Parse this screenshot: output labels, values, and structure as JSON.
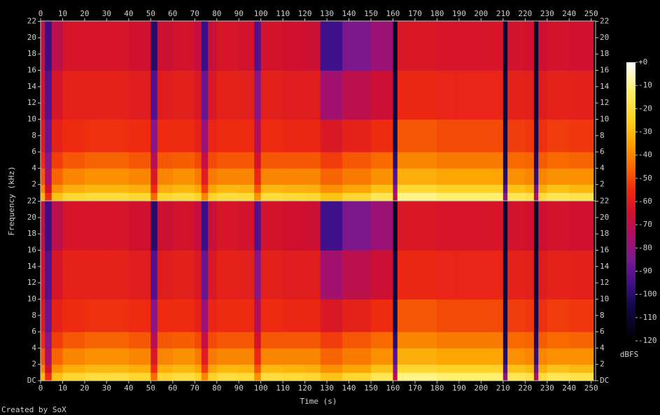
{
  "chart_data": {
    "type": "spectrogram",
    "xlabel": "Time (s)",
    "ylabel": "Frequency (kHz)",
    "footer": "Created by SoX",
    "xlim": [
      0,
      252
    ],
    "xticks": [
      0,
      10,
      20,
      30,
      40,
      50,
      60,
      70,
      80,
      90,
      100,
      110,
      120,
      130,
      140,
      150,
      160,
      170,
      180,
      190,
      200,
      210,
      220,
      230,
      240,
      250
    ],
    "ylim": [
      0,
      22.05
    ],
    "panels": [
      {
        "yticks": [
          2,
          4,
          6,
          8,
          10,
          12,
          14,
          16,
          18,
          20,
          22
        ]
      },
      {
        "yticks": [
          {
            "value": 0,
            "label": "DC"
          },
          2,
          4,
          6,
          8,
          10,
          12,
          14,
          16,
          18,
          20,
          22
        ]
      }
    ],
    "time_edges": [
      0,
      2,
      5,
      10,
      20,
      30,
      40,
      50,
      53,
      60,
      70,
      73,
      76,
      80,
      90,
      97,
      100,
      110,
      120,
      127,
      137,
      150,
      160,
      162,
      170,
      180,
      190,
      200,
      210,
      212,
      220,
      224,
      226,
      230,
      240,
      251
    ],
    "freq_edges": [
      0,
      1,
      2,
      4,
      6,
      10,
      16,
      22.05
    ],
    "z": [
      [
        -30,
        -40,
        -48,
        -55,
        -60,
        -64,
        -68
      ],
      [
        -55,
        -65,
        -75,
        -82,
        -88,
        -92,
        -96
      ],
      [
        -28,
        -38,
        -46,
        -52,
        -58,
        -63,
        -70
      ],
      [
        -22,
        -32,
        -40,
        -48,
        -55,
        -58,
        -63
      ],
      [
        -20,
        -30,
        -38,
        -46,
        -54,
        -58,
        -63
      ],
      [
        -20,
        -30,
        -38,
        -46,
        -54,
        -58,
        -63
      ],
      [
        -22,
        -32,
        -40,
        -48,
        -55,
        -60,
        -65
      ],
      [
        -45,
        -55,
        -62,
        -72,
        -82,
        -92,
        -100
      ],
      [
        -22,
        -32,
        -40,
        -48,
        -55,
        -60,
        -66
      ],
      [
        -20,
        -30,
        -38,
        -47,
        -55,
        -59,
        -64
      ],
      [
        -24,
        -34,
        -42,
        -50,
        -58,
        -62,
        -68
      ],
      [
        -40,
        -52,
        -60,
        -68,
        -78,
        -88,
        -96
      ],
      [
        -24,
        -34,
        -42,
        -50,
        -57,
        -62,
        -67
      ],
      [
        -20,
        -30,
        -40,
        -48,
        -55,
        -58,
        -63
      ],
      [
        -21,
        -31,
        -40,
        -48,
        -55,
        -59,
        -64
      ],
      [
        -38,
        -48,
        -56,
        -64,
        -72,
        -82,
        -92
      ],
      [
        -20,
        -30,
        -40,
        -48,
        -55,
        -59,
        -64
      ],
      [
        -21,
        -31,
        -40,
        -48,
        -56,
        -60,
        -65
      ],
      [
        -22,
        -32,
        -40,
        -48,
        -56,
        -60,
        -66
      ],
      [
        -28,
        -38,
        -46,
        -52,
        -62,
        -76,
        -95
      ],
      [
        -22,
        -34,
        -42,
        -48,
        -58,
        -70,
        -84
      ],
      [
        -16,
        -28,
        -38,
        -45,
        -55,
        -66,
        -78
      ],
      [
        -70,
        -82,
        -92,
        -100,
        -105,
        -108,
        -112
      ],
      [
        -10,
        -22,
        -32,
        -40,
        -48,
        -56,
        -62
      ],
      [
        -10,
        -22,
        -32,
        -40,
        -48,
        -56,
        -62
      ],
      [
        -12,
        -24,
        -34,
        -42,
        -50,
        -57,
        -63
      ],
      [
        -12,
        -24,
        -34,
        -42,
        -50,
        -57,
        -63
      ],
      [
        -12,
        -24,
        -34,
        -42,
        -50,
        -57,
        -63
      ],
      [
        -80,
        -92,
        -100,
        -104,
        -106,
        -108,
        -110
      ],
      [
        -16,
        -28,
        -38,
        -45,
        -52,
        -58,
        -64
      ],
      [
        -18,
        -30,
        -40,
        -46,
        -53,
        -59,
        -65
      ],
      [
        -75,
        -88,
        -98,
        -102,
        -105,
        -108,
        -110
      ],
      [
        -20,
        -32,
        -40,
        -47,
        -54,
        -60,
        -66
      ],
      [
        -16,
        -28,
        -38,
        -45,
        -52,
        -58,
        -64
      ],
      [
        -18,
        -30,
        -38,
        -46,
        -53,
        -59,
        -65
      ]
    ],
    "colorbar": {
      "label": "dBFS",
      "zlim": [
        -120,
        0
      ],
      "ticks": [
        {
          "value": 0,
          "label": "+0"
        },
        -10,
        -20,
        -30,
        -40,
        -50,
        -60,
        -70,
        -80,
        -90,
        -100,
        -110,
        -120
      ]
    },
    "colormap": [
      [
        -120,
        "#000000"
      ],
      [
        -105,
        "#10084a"
      ],
      [
        -95,
        "#40108a"
      ],
      [
        -85,
        "#7a1890"
      ],
      [
        -75,
        "#a8106a"
      ],
      [
        -65,
        "#d0102e"
      ],
      [
        -55,
        "#ee2a10"
      ],
      [
        -45,
        "#f86a00"
      ],
      [
        -35,
        "#fca000"
      ],
      [
        -25,
        "#fed020"
      ],
      [
        -12,
        "#fff070"
      ],
      [
        0,
        "#ffffff"
      ]
    ]
  }
}
